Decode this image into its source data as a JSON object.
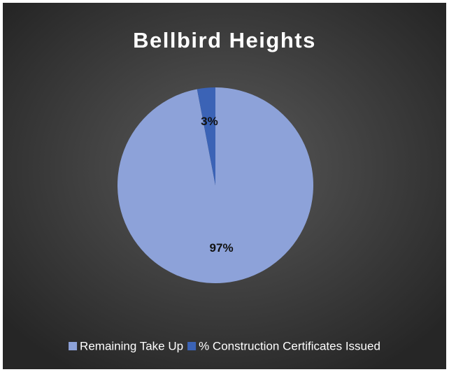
{
  "chart_data": {
    "type": "pie",
    "title": "Bellbird Heights",
    "categories": [
      "Remaining Take Up",
      "% Construction Certificates Issued"
    ],
    "values": [
      97,
      3
    ],
    "value_labels": [
      "97%",
      "3%"
    ],
    "colors": [
      "#8da2d9",
      "#3b63b6"
    ],
    "legend": "bottom"
  }
}
